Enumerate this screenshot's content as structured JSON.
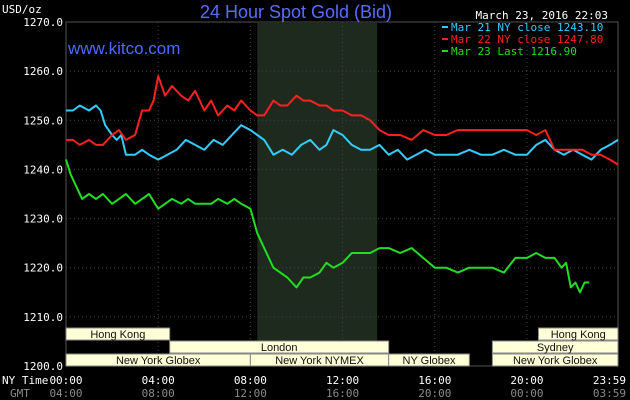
{
  "chart_data": {
    "type": "line",
    "title": "24 Hour Spot Gold (Bid)",
    "website": "www.kitco.com",
    "timestamp": "March 23, 2016 22:03",
    "ylabel": "USD/oz",
    "ylim": [
      1200,
      1270
    ],
    "y_ticks": [
      "1200.0",
      "1210.0",
      "1220.0",
      "1230.0",
      "1240.0",
      "1250.0",
      "1260.0",
      "1270.0"
    ],
    "x_label_ny": "NY Time",
    "x_label_gmt": "GMT",
    "x_ticks_ny": [
      "00:00",
      "04:00",
      "08:00",
      "12:00",
      "16:00",
      "20:00",
      "23:59"
    ],
    "x_ticks_gmt": [
      "04:00",
      "08:00",
      "12:00",
      "16:00",
      "20:00",
      "00:00",
      "03:59"
    ],
    "grid": true,
    "legend_position": "top-right",
    "series": [
      {
        "name": "Mar 21 NY close 1243.10",
        "color": "#33ccff",
        "x": [
          0,
          0.3,
          0.6,
          1.0,
          1.3,
          1.5,
          1.7,
          2.0,
          2.2,
          2.4,
          2.6,
          3.0,
          3.3,
          3.6,
          4.0,
          4.4,
          4.8,
          5.2,
          5.6,
          6.0,
          6.4,
          6.8,
          7.2,
          7.6,
          8.0,
          8.3,
          8.6,
          9.0,
          9.4,
          9.8,
          10.2,
          10.6,
          11.0,
          11.3,
          11.6,
          12.0,
          12.4,
          12.8,
          13.2,
          13.6,
          14.0,
          14.4,
          14.8,
          15.2,
          15.6,
          16.0,
          16.5,
          17.0,
          17.5,
          18.0,
          18.5,
          19.0,
          19.5,
          20.0,
          20.4,
          20.8,
          21.2,
          21.6,
          22.0,
          22.4,
          22.8,
          23.2,
          23.6,
          23.95
        ],
        "y": [
          1252,
          1252,
          1253,
          1252,
          1253,
          1252,
          1249,
          1247,
          1246,
          1247,
          1243,
          1243,
          1244,
          1243,
          1242,
          1243,
          1244,
          1246,
          1245,
          1244,
          1246,
          1245,
          1247,
          1249,
          1248,
          1247,
          1246,
          1243,
          1244,
          1243,
          1245,
          1246,
          1244,
          1245,
          1248,
          1247,
          1245,
          1244,
          1244,
          1245,
          1243,
          1244,
          1242,
          1243,
          1244,
          1243,
          1243,
          1243,
          1244,
          1243,
          1243,
          1244,
          1243,
          1243,
          1245,
          1246,
          1244,
          1243,
          1244,
          1243,
          1242,
          1244,
          1245,
          1246
        ]
      },
      {
        "name": "Mar 22 NY close 1247.80",
        "color": "#ff2020",
        "x": [
          0,
          0.3,
          0.6,
          1.0,
          1.3,
          1.6,
          2.0,
          2.3,
          2.6,
          3.0,
          3.3,
          3.6,
          3.8,
          4.0,
          4.3,
          4.6,
          5.0,
          5.3,
          5.6,
          6.0,
          6.3,
          6.6,
          7.0,
          7.3,
          7.6,
          8.0,
          8.3,
          8.6,
          9.0,
          9.3,
          9.6,
          10.0,
          10.3,
          10.6,
          11.0,
          11.3,
          11.6,
          12.0,
          12.4,
          12.8,
          13.2,
          13.6,
          14.0,
          14.5,
          15.0,
          15.5,
          16.0,
          16.5,
          17.0,
          17.5,
          18.0,
          18.5,
          19.0,
          19.5,
          20.0,
          20.4,
          20.8,
          21.2,
          21.6,
          22.0,
          22.4,
          22.8,
          23.2,
          23.6,
          23.95
        ],
        "y": [
          1246,
          1246,
          1245,
          1246,
          1245,
          1245,
          1247,
          1248,
          1246,
          1247,
          1252,
          1252,
          1254,
          1259,
          1255,
          1257,
          1255,
          1254,
          1256,
          1252,
          1254,
          1251,
          1253,
          1252,
          1254,
          1252,
          1251,
          1251,
          1254,
          1253,
          1253,
          1255,
          1254,
          1254,
          1253,
          1253,
          1252,
          1252,
          1251,
          1251,
          1250,
          1248,
          1247,
          1247,
          1246,
          1248,
          1247,
          1247,
          1248,
          1248,
          1248,
          1248,
          1248,
          1248,
          1248,
          1247,
          1248,
          1244,
          1244,
          1244,
          1244,
          1243,
          1243,
          1242,
          1241
        ]
      },
      {
        "name": "Mar 23 Last 1216.90",
        "color": "#22dd22",
        "x": [
          0,
          0.2,
          0.4,
          0.7,
          1.0,
          1.3,
          1.6,
          2.0,
          2.3,
          2.6,
          3.0,
          3.3,
          3.6,
          4.0,
          4.3,
          4.6,
          5.0,
          5.3,
          5.6,
          6.0,
          6.3,
          6.6,
          7.0,
          7.3,
          7.6,
          8.0,
          8.3,
          8.6,
          9.0,
          9.3,
          9.6,
          10.0,
          10.3,
          10.6,
          11.0,
          11.3,
          11.6,
          12.0,
          12.4,
          12.8,
          13.2,
          13.6,
          14.0,
          14.5,
          15.0,
          15.5,
          16.0,
          16.5,
          17.0,
          17.5,
          18.0,
          18.5,
          19.0,
          19.5,
          20.0,
          20.4,
          20.8,
          21.2,
          21.5,
          21.7,
          21.9,
          22.1,
          22.3,
          22.5,
          22.7
        ],
        "y": [
          1242,
          1239,
          1237,
          1234,
          1235,
          1234,
          1235,
          1233,
          1234,
          1235,
          1233,
          1234,
          1235,
          1232,
          1233,
          1234,
          1233,
          1234,
          1233,
          1233,
          1233,
          1234,
          1233,
          1234,
          1233,
          1232,
          1227,
          1224,
          1220,
          1219,
          1218,
          1216,
          1218,
          1218,
          1219,
          1221,
          1220,
          1221,
          1223,
          1223,
          1223,
          1224,
          1224,
          1223,
          1224,
          1222,
          1220,
          1220,
          1219,
          1220,
          1220,
          1220,
          1219,
          1222,
          1222,
          1223,
          1222,
          1222,
          1220,
          1221,
          1216,
          1217,
          1215,
          1217,
          1217
        ]
      }
    ],
    "sessions": [
      {
        "label": "Hong Kong",
        "row": 0,
        "start": 0,
        "end": 4.5
      },
      {
        "label": "London",
        "row": 1,
        "start": 4.5,
        "end": 14.0
      },
      {
        "label": "New York Globex",
        "row": 2,
        "start": 0,
        "end": 8.0
      },
      {
        "label": "New York NYMEX",
        "row": 2,
        "start": 8.0,
        "end": 14.0
      },
      {
        "label": "NY Globex",
        "row": 2,
        "start": 14.0,
        "end": 17.5
      },
      {
        "label": "Hong Kong",
        "row": 0,
        "start": 20.5,
        "end": 23.95
      },
      {
        "label": "Sydney",
        "row": 1,
        "start": 18.5,
        "end": 23.95
      },
      {
        "label": "New York Globex",
        "row": 2,
        "start": 18.5,
        "end": 23.95
      }
    ],
    "shaded_region": {
      "start": 8.3,
      "end": 13.5
    }
  }
}
